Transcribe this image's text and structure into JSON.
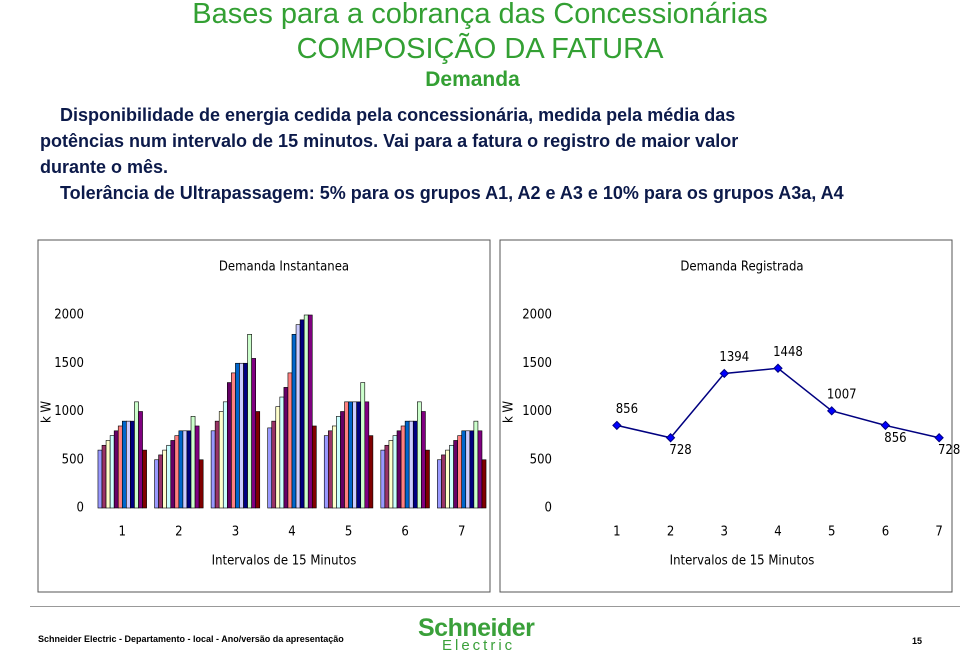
{
  "header": {
    "title": "Bases para a cobrança das Concessionárias",
    "subtitle": "COMPOSIÇÃO DA FATURA",
    "section": "Demanda"
  },
  "body": {
    "paragraph1": "Disponibilidade de energia cedida pela concessionária, medida pela média das potências num intervalo de 15 minutos. Vai para a fatura o registro de maior valor durante o mês.",
    "paragraph2": "Tolerância de Ultrapassagem: 5% para os grupos A1, A2 e A3 e 10% para os grupos A3a, A4"
  },
  "chart_data": [
    {
      "type": "bar",
      "title": "Demanda Instantanea",
      "y_label": "k W",
      "x_label": "Intervalos de 15 Minutos",
      "categories": [
        "1",
        "2",
        "3",
        "4",
        "5",
        "6",
        "7"
      ],
      "ylim": [
        0,
        2000
      ],
      "yticks": [
        0,
        500,
        1000,
        1500,
        2000
      ],
      "series": [
        {
          "color": "#9999FF",
          "values": [
            600,
            500,
            800,
            830,
            750,
            600,
            500
          ]
        },
        {
          "color": "#993366",
          "values": [
            650,
            550,
            900,
            900,
            800,
            650,
            550
          ]
        },
        {
          "color": "#FFFFCC",
          "values": [
            700,
            600,
            1000,
            1050,
            850,
            700,
            600
          ]
        },
        {
          "color": "#CCFFFF",
          "values": [
            750,
            650,
            1100,
            1150,
            950,
            750,
            650
          ]
        },
        {
          "color": "#660066",
          "values": [
            800,
            700,
            1300,
            1250,
            1000,
            800,
            700
          ]
        },
        {
          "color": "#FF8080",
          "values": [
            850,
            750,
            1400,
            1400,
            1100,
            850,
            750
          ]
        },
        {
          "color": "#0066CC",
          "values": [
            900,
            800,
            1500,
            1800,
            1100,
            900,
            800
          ]
        },
        {
          "color": "#CCCCFF",
          "values": [
            900,
            800,
            1500,
            1900,
            1100,
            900,
            800
          ]
        },
        {
          "color": "#000080",
          "values": [
            900,
            800,
            1500,
            1950,
            1100,
            900,
            800
          ]
        },
        {
          "color": "#CCFFCC",
          "values": [
            1100,
            950,
            1800,
            2000,
            1300,
            1100,
            900
          ]
        },
        {
          "color": "#800080",
          "values": [
            1000,
            850,
            1550,
            2000,
            1100,
            1000,
            800
          ]
        },
        {
          "color": "#800000",
          "values": [
            600,
            500,
            1000,
            850,
            750,
            600,
            500
          ]
        }
      ]
    },
    {
      "type": "line",
      "title": "Demanda Registrada",
      "y_label": "k W",
      "x_label": "Intervalos de 15 Minutos",
      "categories": [
        "1",
        "2",
        "3",
        "4",
        "5",
        "6",
        "7"
      ],
      "ylim": [
        0,
        2000
      ],
      "yticks": [
        0,
        500,
        1000,
        1500,
        2000
      ],
      "series": [
        {
          "color": "#000080",
          "marker_color": "#0000FF",
          "values": [
            856,
            728,
            1394,
            1448,
            1007,
            856,
            728
          ]
        }
      ]
    }
  ],
  "footer": {
    "text": "Schneider Electric  - Departamento - local - Ano/versão da apresentação",
    "logo_top": "Schneider",
    "logo_bottom": "Electric",
    "page": "15"
  }
}
